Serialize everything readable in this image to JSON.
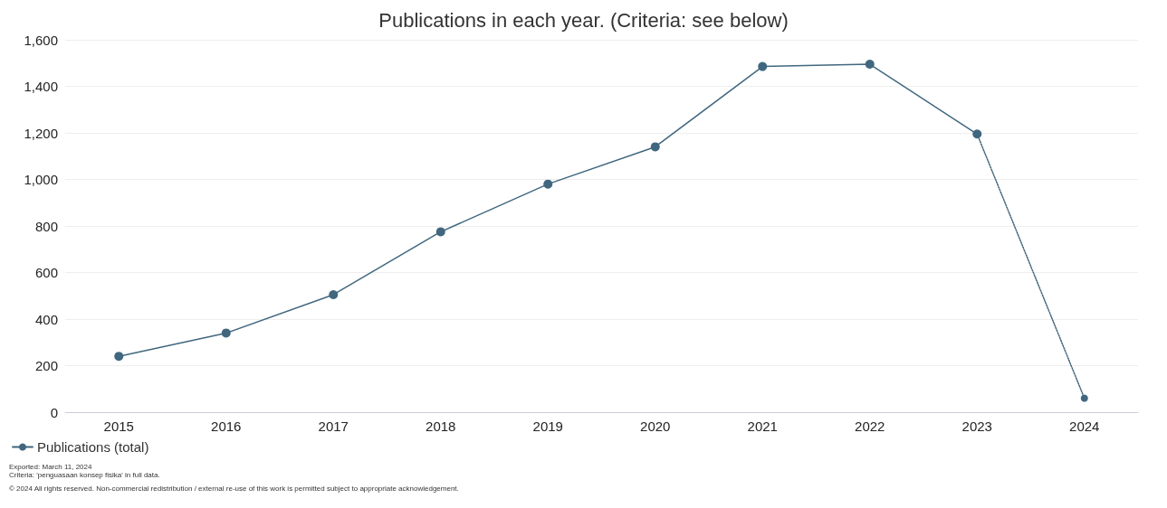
{
  "chart_data": {
    "type": "line",
    "title": "Publications in each year. (Criteria: see below)",
    "categories": [
      "2015",
      "2016",
      "2017",
      "2018",
      "2019",
      "2020",
      "2021",
      "2022",
      "2023",
      "2024"
    ],
    "series": [
      {
        "name": "Publications (total)",
        "color": "#41677f",
        "line_style": "solid",
        "values": [
          240,
          340,
          505,
          775,
          980,
          1140,
          1485,
          1495,
          1195,
          null
        ]
      },
      {
        "color": "#41677f",
        "line_style": "dotted",
        "values": [
          null,
          null,
          null,
          null,
          null,
          null,
          null,
          null,
          1195,
          60
        ]
      }
    ],
    "ylim": [
      0,
      1600
    ],
    "yticks": [
      {
        "value": 0,
        "label": "0"
      },
      {
        "value": 200,
        "label": "200"
      },
      {
        "value": 400,
        "label": "400"
      },
      {
        "value": 600,
        "label": "600"
      },
      {
        "value": 800,
        "label": "800"
      },
      {
        "value": 1000,
        "label": "1,000"
      },
      {
        "value": 1200,
        "label": "1,200"
      },
      {
        "value": 1400,
        "label": "1,400"
      },
      {
        "value": 1600,
        "label": "1,600"
      }
    ],
    "grid": "y",
    "legend": "bottom left",
    "marker": "circle",
    "annotations": [
      "Exported: March 11, 2024",
      "Criteria: 'penguasaan konsep fisika' in full data.",
      "© 2024 All rights reserved. Non-commercial redistribution / external re-use of this work is permitted subject to appropriate acknowledgement."
    ]
  }
}
